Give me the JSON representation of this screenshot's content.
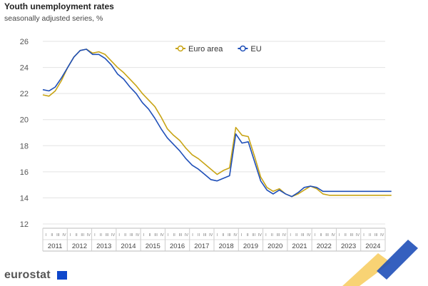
{
  "header": {
    "title": "Youth unemployment rates",
    "subtitle": "seasonally adjusted series, %"
  },
  "brand": {
    "logo_text": "eurostat"
  },
  "colors": {
    "euro_area": "#c8a415",
    "eu": "#1f4fb8",
    "grid": "#e3e3e3",
    "axis_text": "#555555"
  },
  "chart_data": {
    "type": "line",
    "ylim": [
      12,
      26
    ],
    "yticks": [
      12,
      14,
      16,
      18,
      20,
      22,
      24,
      26
    ],
    "years": [
      "2011",
      "2012",
      "2013",
      "2014",
      "2015",
      "2016",
      "2017",
      "2018",
      "2019",
      "2020",
      "2021",
      "2022",
      "2023",
      "2024"
    ],
    "quarter_labels": [
      "I",
      "II",
      "III",
      "IV"
    ],
    "legend_position": "top-center",
    "series": [
      {
        "name": "Euro area",
        "color": "#c8a415",
        "x_quarters": [
          0,
          1,
          2,
          3,
          4,
          5,
          6,
          7,
          8,
          9,
          10,
          11,
          12,
          13,
          14,
          15,
          16,
          17,
          18,
          19,
          20,
          21,
          22,
          23,
          24,
          25,
          26,
          27,
          28,
          29,
          30,
          31,
          32,
          33,
          34,
          35,
          36,
          37,
          38,
          39,
          40,
          41,
          42,
          43,
          44,
          45,
          46,
          47,
          48,
          49,
          50,
          51,
          52,
          53,
          54,
          55,
          56
        ],
        "values": [
          21.9,
          21.8,
          22.2,
          23.0,
          24.0,
          24.8,
          25.3,
          25.4,
          25.1,
          25.2,
          25.0,
          24.5,
          24.0,
          23.6,
          23.1,
          22.6,
          22.0,
          21.5,
          21.0,
          20.2,
          19.3,
          18.8,
          18.4,
          17.8,
          17.3,
          17.0,
          16.6,
          16.2,
          15.8,
          16.1,
          16.3,
          19.4,
          18.8,
          18.7,
          17.2,
          15.6,
          14.8,
          14.5,
          14.7,
          14.3,
          14.1,
          14.3,
          14.6,
          14.9,
          14.7,
          14.3,
          14.2,
          14.2,
          14.2,
          14.2,
          14.2,
          14.2,
          14.2,
          14.2,
          14.2,
          14.2,
          14.2
        ]
      },
      {
        "name": "EU",
        "color": "#1f4fb8",
        "x_quarters": [
          0,
          1,
          2,
          3,
          4,
          5,
          6,
          7,
          8,
          9,
          10,
          11,
          12,
          13,
          14,
          15,
          16,
          17,
          18,
          19,
          20,
          21,
          22,
          23,
          24,
          25,
          26,
          27,
          28,
          29,
          30,
          31,
          32,
          33,
          34,
          35,
          36,
          37,
          38,
          39,
          40,
          41,
          42,
          43,
          44,
          45,
          46,
          47,
          48,
          49,
          50,
          51,
          52,
          53,
          54,
          55,
          56
        ],
        "values": [
          22.3,
          22.2,
          22.5,
          23.2,
          24.0,
          24.8,
          25.3,
          25.4,
          25.0,
          25.0,
          24.7,
          24.2,
          23.5,
          23.1,
          22.5,
          22.0,
          21.3,
          20.8,
          20.1,
          19.3,
          18.6,
          18.1,
          17.6,
          17.0,
          16.5,
          16.2,
          15.8,
          15.4,
          15.3,
          15.5,
          15.7,
          18.9,
          18.2,
          18.3,
          16.8,
          15.3,
          14.6,
          14.3,
          14.6,
          14.3,
          14.1,
          14.4,
          14.8,
          14.9,
          14.8,
          14.5,
          14.5,
          14.5,
          14.5,
          14.5,
          14.5,
          14.5,
          14.5,
          14.5,
          14.5,
          14.5,
          14.5
        ]
      }
    ]
  }
}
